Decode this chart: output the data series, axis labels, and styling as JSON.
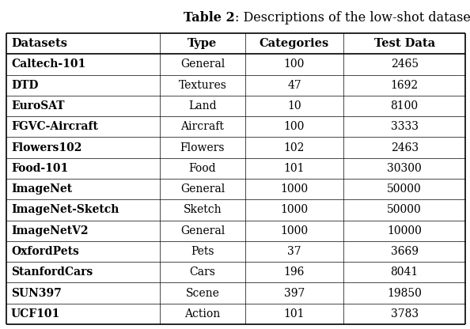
{
  "title_bold": "Table 2",
  "title_rest": ": Descriptions of the low-shot datasets.",
  "headers": [
    "Datasets",
    "Type",
    "Categories",
    "Test Data"
  ],
  "rows": [
    [
      "Caltech-101",
      "General",
      "100",
      "2465"
    ],
    [
      "DTD",
      "Textures",
      "47",
      "1692"
    ],
    [
      "EuroSAT",
      "Land",
      "10",
      "8100"
    ],
    [
      "FGVC-Aircraft",
      "Aircraft",
      "100",
      "3333"
    ],
    [
      "Flowers102",
      "Flowers",
      "102",
      "2463"
    ],
    [
      "Food-101",
      "Food",
      "101",
      "30300"
    ],
    [
      "ImageNet",
      "General",
      "1000",
      "50000"
    ],
    [
      "ImageNet-Sketch",
      "Sketch",
      "1000",
      "50000"
    ],
    [
      "ImageNetV2",
      "General",
      "1000",
      "10000"
    ],
    [
      "OxfordPets",
      "Pets",
      "37",
      "3669"
    ],
    [
      "StanfordCars",
      "Cars",
      "196",
      "8041"
    ],
    [
      "SUN397",
      "Scene",
      "397",
      "19850"
    ],
    [
      "UCF101",
      "Action",
      "101",
      "3783"
    ]
  ],
  "col_aligns": [
    "left",
    "center",
    "center",
    "center"
  ],
  "bg_color": "#ffffff",
  "line_color": "#000000",
  "text_color": "#000000",
  "title_fontsize": 11.5,
  "header_fontsize": 10.5,
  "cell_fontsize": 10.0,
  "fig_width": 5.94,
  "fig_height": 4.16,
  "dpi": 100
}
